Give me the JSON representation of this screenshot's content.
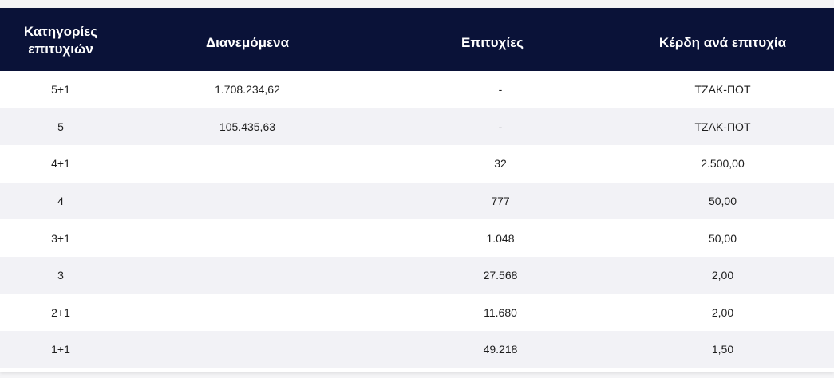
{
  "table": {
    "headers": [
      "Κατηγορίες επιτυχιών",
      "Διανεμόμενα",
      "Επιτυχίες",
      "Κέρδη ανά επιτυχία"
    ],
    "header_lines": {
      "category_line1": "Κατηγορίες",
      "category_line2": "επιτυχιών"
    },
    "rows": [
      {
        "category": "5+1",
        "distributed": "1.708.234,62",
        "winners": "-",
        "prize": "ΤΖΑΚ-ΠΟΤ"
      },
      {
        "category": "5",
        "distributed": "105.435,63",
        "winners": "-",
        "prize": "ΤΖΑΚ-ΠΟΤ"
      },
      {
        "category": "4+1",
        "distributed": "",
        "winners": "32",
        "prize": "2.500,00"
      },
      {
        "category": "4",
        "distributed": "",
        "winners": "777",
        "prize": "50,00"
      },
      {
        "category": "3+1",
        "distributed": "",
        "winners": "1.048",
        "prize": "50,00"
      },
      {
        "category": "3",
        "distributed": "",
        "winners": "27.568",
        "prize": "2,00"
      },
      {
        "category": "2+1",
        "distributed": "",
        "winners": "11.680",
        "prize": "2,00"
      },
      {
        "category": "1+1",
        "distributed": "",
        "winners": "49.218",
        "prize": "1,50"
      }
    ]
  },
  "colors": {
    "header_bg": "#0a1238",
    "stripe": "#f2f2f6"
  }
}
